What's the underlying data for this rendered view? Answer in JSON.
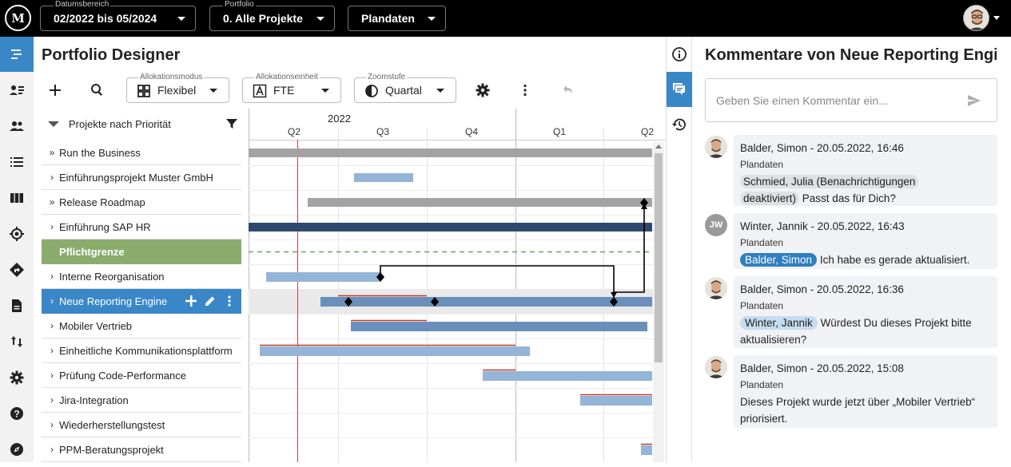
{
  "topbar": {
    "date_range": {
      "caption": "Datumsbereich",
      "value": "02/2022 bis 05/2024"
    },
    "portfolio": {
      "caption": "Portfolio",
      "value": "0. Alle Projekte"
    },
    "plan": {
      "value": "Plandaten"
    }
  },
  "main": {
    "title": "Portfolio Designer",
    "toolbar": {
      "allocation_mode": {
        "caption": "Allokationsmodus",
        "value": "Flexibel"
      },
      "allocation_unit": {
        "caption": "Allokationseinheit",
        "value": "FTE"
      },
      "zoom": {
        "caption": "Zoomstufe",
        "value": "Quartal"
      }
    },
    "list_header": "Projekte nach Priorität",
    "projects": [
      {
        "name": "Run the Business",
        "chevron": "»"
      },
      {
        "name": "Einführungsprojekt Muster GmbH",
        "chevron": "›"
      },
      {
        "name": "Release Roadmap",
        "chevron": "»"
      },
      {
        "name": "Einführung SAP HR",
        "chevron": "›"
      },
      {
        "name": "Pflichtgrenze",
        "chevron": ""
      },
      {
        "name": "Interne Reorganisation",
        "chevron": "›"
      },
      {
        "name": "Neue Reporting Engine",
        "chevron": "›"
      },
      {
        "name": "Mobiler Vertrieb",
        "chevron": "›"
      },
      {
        "name": "Einheitliche Kommunikationsplattform",
        "chevron": "›"
      },
      {
        "name": "Prüfung Code-Performance",
        "chevron": "›"
      },
      {
        "name": "Jira-Integration",
        "chevron": "›"
      },
      {
        "name": "Wiederherstellungstest",
        "chevron": "›"
      },
      {
        "name": "PPM-Beratungsprojekt",
        "chevron": "›"
      }
    ],
    "timeline": {
      "year": "2022",
      "quarters": [
        "Q2",
        "Q3",
        "Q4",
        "Q1",
        "Q2"
      ]
    }
  },
  "comments": {
    "title": "Kommentare von Neue Reporting Engi…",
    "placeholder": "Geben Sie einen Kommentar ein...",
    "items": [
      {
        "author": "Balder, Simon",
        "date": "20.05.2022, 16:46",
        "scope": "Plandaten",
        "mention": "Schmied, Julia (Benachrichtigungen",
        "mention2": "deaktiviert)",
        "text": "Passt das für Dich?"
      },
      {
        "author": "Winter, Jannik",
        "initials": "JW",
        "date": "20.05.2022, 16:43",
        "scope": "Plandaten",
        "mention": "Balder, Simon",
        "text": "Ich habe es gerade aktualisiert."
      },
      {
        "author": "Balder, Simon",
        "date": "20.05.2022, 16:36",
        "scope": "Plandaten",
        "mention": "Winter, Jannik",
        "text": "Würdest Du dieses Projekt bitte",
        "text2": "aktualisieren?"
      },
      {
        "author": "Balder, Simon",
        "date": "20.05.2022, 15:08",
        "scope": "Plandaten",
        "text": "Dieses Projekt wurde jetzt über „Mobiler Vertrieb“",
        "text2": "priorisiert."
      }
    ]
  },
  "colors": {
    "accent": "#3a87c8",
    "limit": "#8aad6e",
    "bar_light": "#94b4d8",
    "bar_dark": "#2d4a6e",
    "bar_grey": "#a3a3a3",
    "today": "#d04040"
  }
}
